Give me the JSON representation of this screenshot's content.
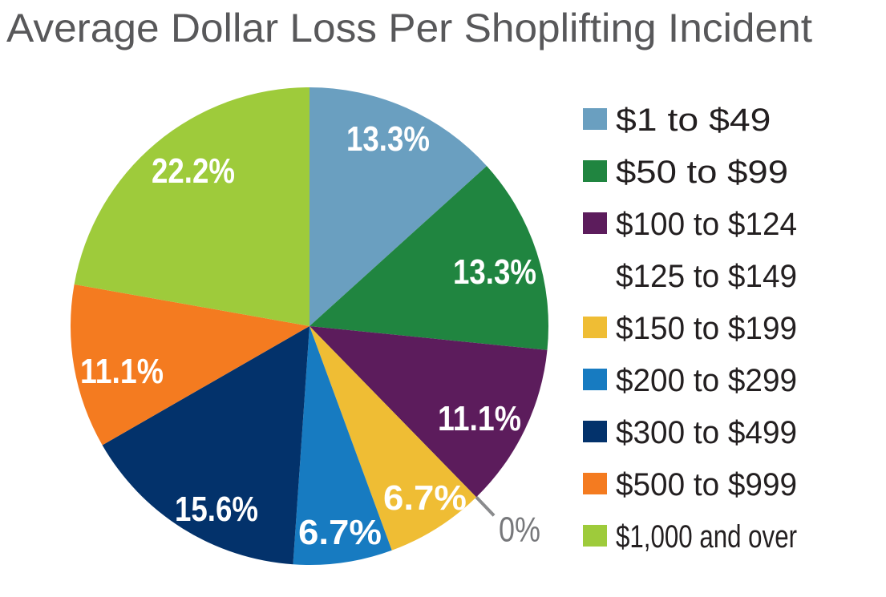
{
  "chart_data": {
    "type": "pie",
    "title": "Average Dollar Loss Per Shoplifting Incident",
    "categories": [
      "$1 to $49",
      "$50 to $99",
      "$100 to $124",
      "$125 to $149",
      "$150 to $199",
      "$200 to $299",
      "$300 to $499",
      "$500 to $999",
      "$1,000 and over"
    ],
    "values": [
      13.3,
      13.3,
      11.1,
      0,
      6.7,
      6.7,
      15.6,
      11.1,
      22.2
    ],
    "labels": [
      "13.3%",
      "13.3%",
      "11.1%",
      "0%",
      "6.7%",
      "6.7%",
      "15.6%",
      "11.1%",
      "22.2%"
    ],
    "colors": [
      "#6a9fc0",
      "#208540",
      "#5c1c5c",
      "#ffffff",
      "#efbd34",
      "#177bc1",
      "#03326b",
      "#f47b20",
      "#9ecb3b"
    ],
    "start_angle": "top, clockwise",
    "legend_position": "right"
  }
}
